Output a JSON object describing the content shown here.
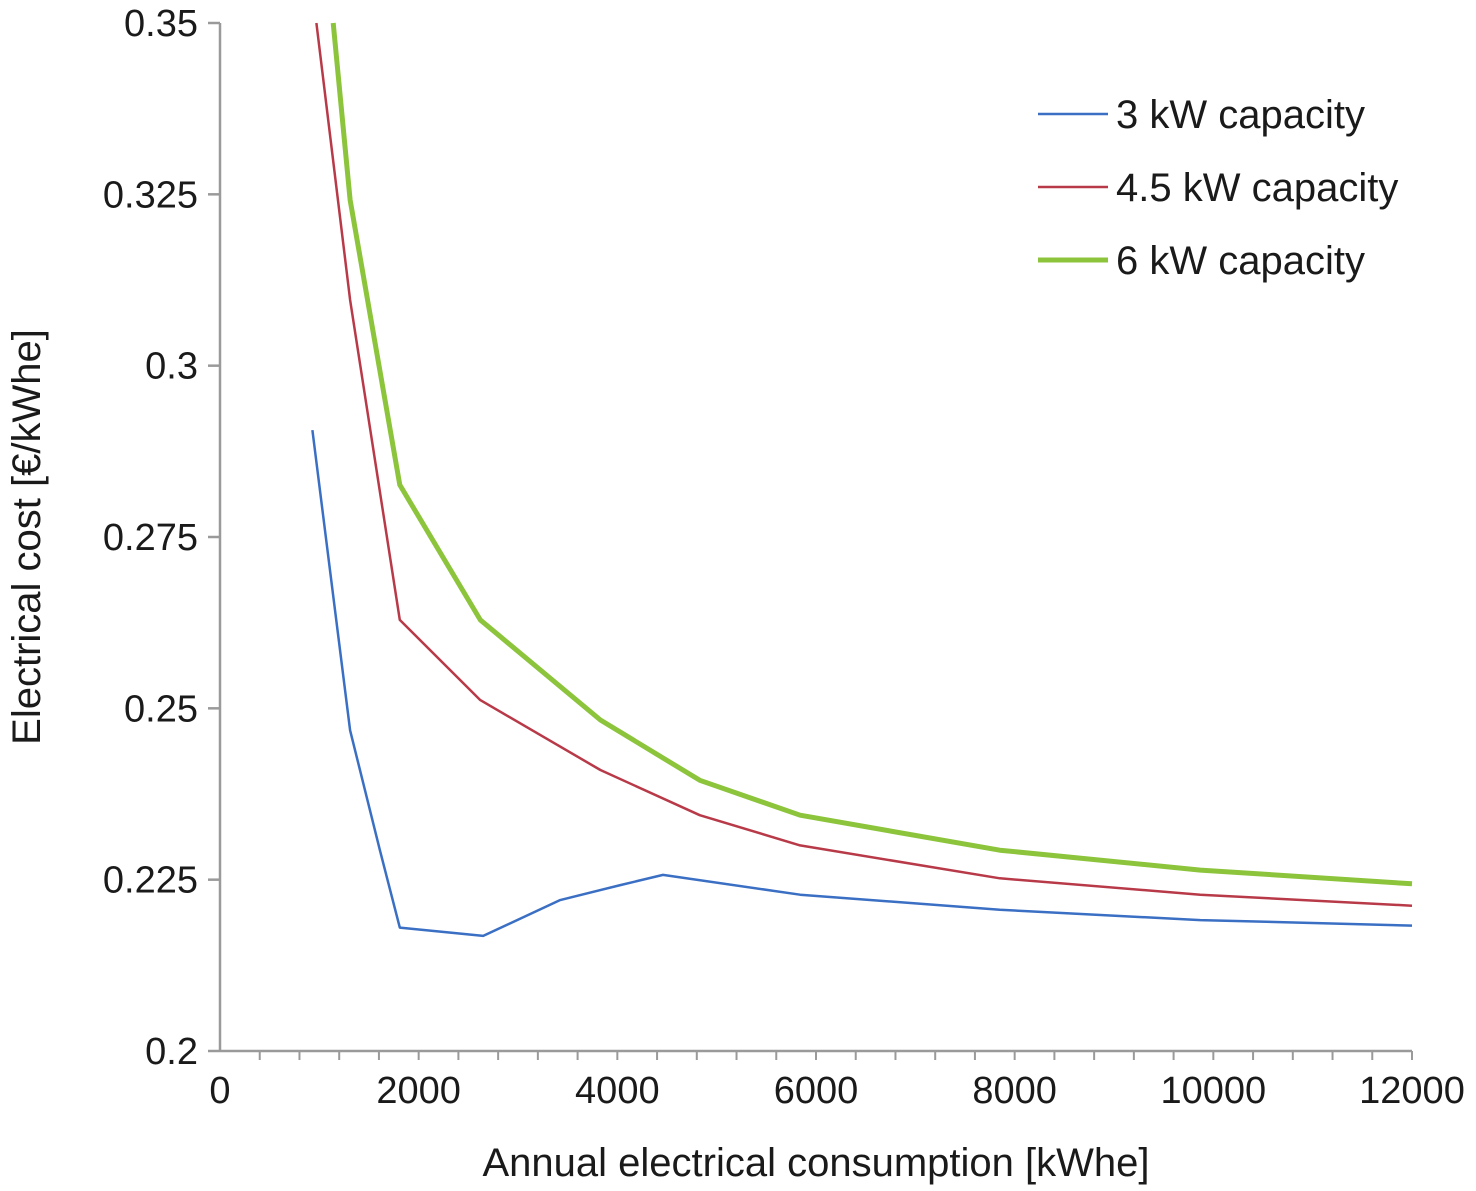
{
  "chart_data": {
    "type": "line",
    "title": "",
    "xlabel": "Annual electrical consumption [kWhe]",
    "ylabel": "Electrical cost [€/kWhe]",
    "xlim": [
      0,
      12000
    ],
    "ylim": [
      0.2,
      0.35
    ],
    "xticks": [
      0,
      2000,
      4000,
      6000,
      8000,
      10000,
      12000
    ],
    "xtick_labels": [
      "0",
      "2000",
      "4000",
      "6000",
      "8000",
      "10000",
      "12000"
    ],
    "yticks": [
      0.2,
      0.225,
      0.25,
      0.275,
      0.3,
      0.325,
      0.35
    ],
    "ytick_labels": [
      "0.2",
      "0.225",
      "0.25",
      "0.275",
      "0.3",
      "0.325",
      "0.35"
    ],
    "grid": false,
    "legend_position": "top-right",
    "series": [
      {
        "name": "3 kW capacity",
        "color": "#3a6fc4",
        "width": 2.5,
        "x": [
          930,
          1310,
          1610,
          1810,
          2650,
          3420,
          4030,
          4460,
          5840,
          7850,
          9870,
          12000
        ],
        "y": [
          0.2906,
          0.2468,
          0.2293,
          0.218,
          0.2168,
          0.222,
          0.2242,
          0.2257,
          0.2228,
          0.2206,
          0.2191,
          0.2183
        ]
      },
      {
        "name": "4.5 kW capacity",
        "color": "#b83a48",
        "width": 2.5,
        "x": [
          970,
          1310,
          1810,
          2620,
          3830,
          4830,
          5840,
          7850,
          9870,
          12000
        ],
        "y": [
          0.35,
          0.3096,
          0.2629,
          0.2512,
          0.241,
          0.2344,
          0.23,
          0.2252,
          0.2228,
          0.2212
        ]
      },
      {
        "name": "6 kW capacity",
        "color": "#8cc43c",
        "width": 5,
        "x": [
          1140,
          1310,
          1810,
          2620,
          3830,
          4830,
          5840,
          7850,
          9870,
          12000
        ],
        "y": [
          0.35,
          0.3242,
          0.2826,
          0.2629,
          0.2483,
          0.2395,
          0.2344,
          0.2293,
          0.2264,
          0.2244
        ]
      }
    ]
  }
}
